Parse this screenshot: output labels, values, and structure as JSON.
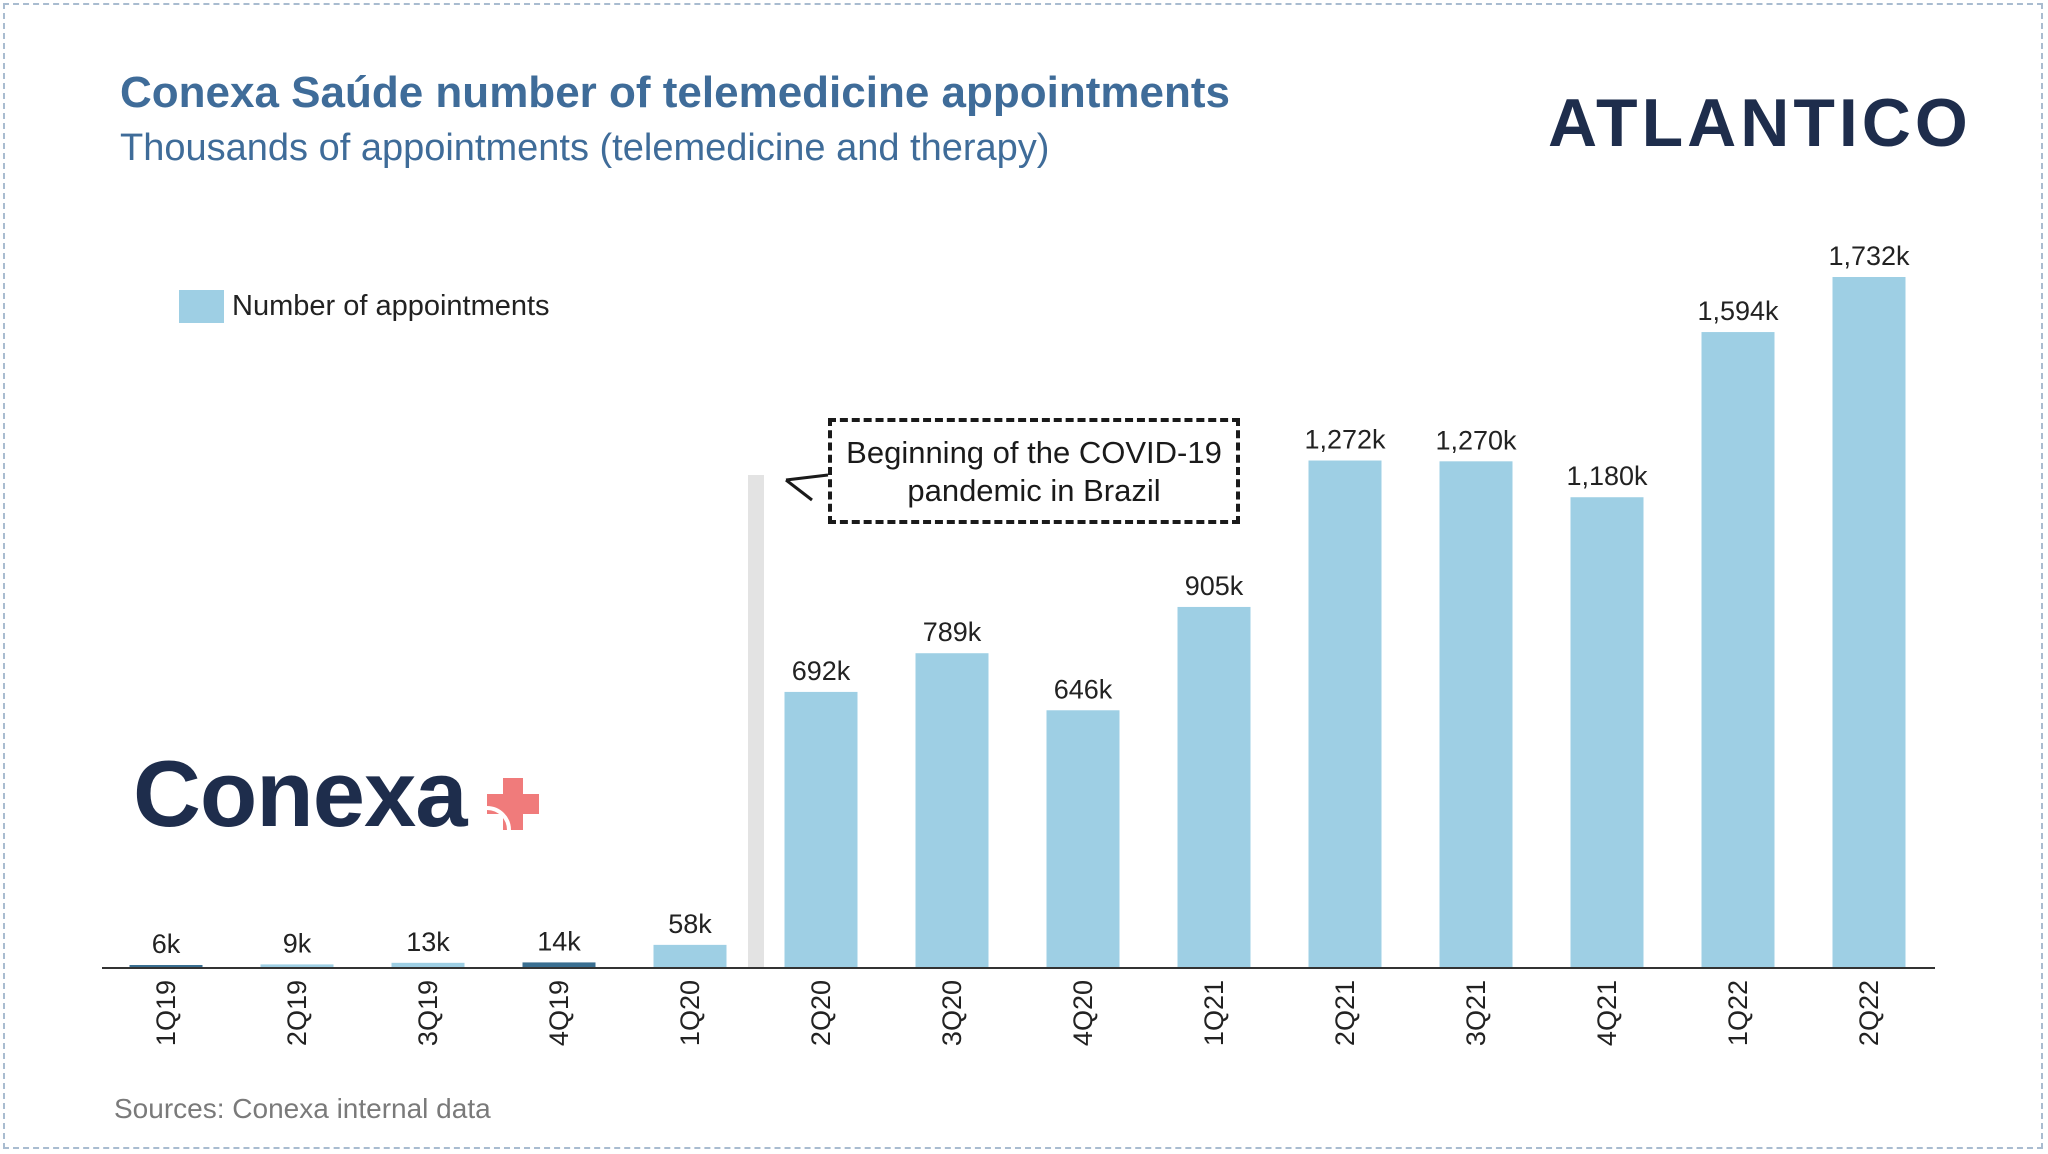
{
  "header": {
    "title": "Conexa Saúde number of telemedicine appointments",
    "subtitle": "Thousands of appointments (telemedicine and therapy)",
    "brand": "ATLANTICO"
  },
  "logo": {
    "text": "Conexa"
  },
  "annotation": {
    "line1": "Beginning of the COVID-19",
    "line2": "pandemic in Brazil"
  },
  "footer": {
    "source": "Sources: Conexa internal data"
  },
  "colors": {
    "bar": "#9ecfe4",
    "bar_dark": "#3a6f91",
    "title": "#3f6c99",
    "brand": "#1e2d4c",
    "logo_plus": "#f07b7b",
    "covid_marker": "#e3e3e3"
  },
  "chart_data": {
    "type": "bar",
    "title": "Conexa Saúde number of telemedicine appointments",
    "subtitle": "Thousands of appointments (telemedicine and therapy)",
    "categories": [
      "1Q19",
      "2Q19",
      "3Q19",
      "4Q19",
      "1Q20",
      "2Q20",
      "3Q20",
      "4Q20",
      "1Q21",
      "2Q21",
      "3Q21",
      "4Q21",
      "1Q22",
      "2Q22"
    ],
    "series": [
      {
        "name": "Number of appointments",
        "values": [
          6,
          9,
          13,
          14,
          58,
          692,
          789,
          646,
          905,
          1272,
          1270,
          1180,
          1594,
          1732
        ],
        "labels": [
          "6k",
          "9k",
          "13k",
          "14k",
          "58k",
          "692k",
          "789k",
          "646k",
          "905k",
          "1,272k",
          "1,270k",
          "1,180k",
          "1,594k",
          "1,732k"
        ]
      }
    ],
    "dark_bars": [
      0,
      3
    ],
    "ylim": [
      0,
      1732
    ],
    "legend_position": "top-left",
    "grid": false,
    "xlabel": "",
    "ylabel": ""
  }
}
